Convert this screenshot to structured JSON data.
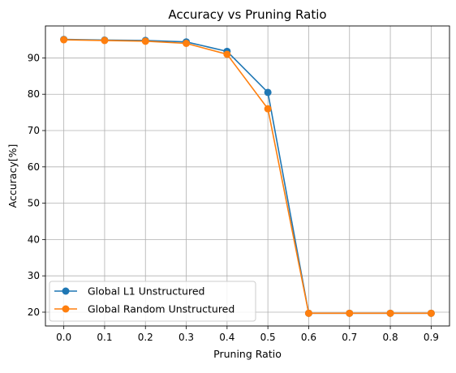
{
  "chart_data": {
    "type": "line",
    "title": "Accuracy vs Pruning Ratio",
    "xlabel": "Pruning Ratio",
    "ylabel": "Accuracy[%]",
    "x": [
      0.0,
      0.1,
      0.2,
      0.3,
      0.4,
      0.5,
      0.6,
      0.7,
      0.8,
      0.9
    ],
    "x_tick_labels": [
      "0.0",
      "0.1",
      "0.2",
      "0.3",
      "0.4",
      "0.5",
      "0.6",
      "0.7",
      "0.8",
      "0.9"
    ],
    "y_ticks": [
      20,
      30,
      40,
      50,
      60,
      70,
      80,
      90
    ],
    "y_tick_labels": [
      "20",
      "30",
      "40",
      "50",
      "60",
      "70",
      "80",
      "90"
    ],
    "xlim": [
      -0.045,
      0.945
    ],
    "ylim": [
      16.2,
      98.8
    ],
    "grid": true,
    "legend_position": "lower-left",
    "series": [
      {
        "name": "Global L1 Unstructured",
        "color": "#1f77b4",
        "marker": "circle",
        "values": [
          95.1,
          94.9,
          94.8,
          94.4,
          91.8,
          80.5,
          19.7,
          19.7,
          19.7,
          19.7
        ]
      },
      {
        "name": "Global Random Unstructured",
        "color": "#ff7f0e",
        "marker": "circle",
        "values": [
          95.0,
          94.8,
          94.6,
          94.0,
          91.0,
          76.0,
          19.7,
          19.7,
          19.7,
          19.7
        ]
      }
    ]
  }
}
